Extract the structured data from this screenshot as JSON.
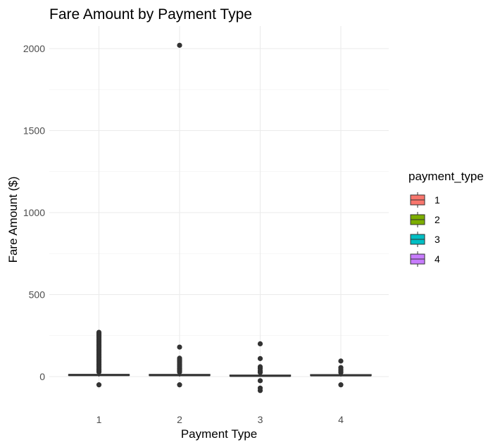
{
  "chart_data": {
    "type": "box",
    "title": "Fare Amount by Payment Type",
    "xlabel": "Payment Type",
    "ylabel": "Fare Amount ($)",
    "categories": [
      "1",
      "2",
      "3",
      "4"
    ],
    "ylim": [
      -100,
      2100
    ],
    "yticks": [
      0,
      500,
      1000,
      1500,
      2000
    ],
    "yticks_minor": [
      250,
      750,
      1250,
      1750
    ],
    "grid": true,
    "legend": {
      "title": "payment_type",
      "position": "right",
      "entries": [
        "1",
        "2",
        "3",
        "4"
      ]
    },
    "colors": {
      "1": "#F8766D",
      "2": "#7CAE00",
      "3": "#00BFC4",
      "4": "#C77CFF"
    },
    "boxes": [
      {
        "category": "1",
        "q1": 7,
        "median": 9.5,
        "q3": 13,
        "whisker_low": 0,
        "whisker_high": 22,
        "outliers": [
          -50,
          28,
          34,
          40,
          46,
          52,
          58,
          64,
          70,
          76,
          82,
          88,
          94,
          100,
          106,
          112,
          118,
          124,
          130,
          136,
          142,
          148,
          154,
          160,
          166,
          172,
          178,
          184,
          190,
          196,
          202,
          208,
          214,
          220,
          226,
          232,
          238,
          244,
          250,
          255,
          260,
          265,
          270
        ]
      },
      {
        "category": "2",
        "q1": 6.5,
        "median": 9,
        "q3": 13,
        "whisker_low": 0,
        "whisker_high": 22,
        "outliers": [
          -50,
          28,
          35,
          42,
          49,
          56,
          63,
          70,
          77,
          84,
          91,
          98,
          105,
          112,
          180,
          2020
        ]
      },
      {
        "category": "3",
        "q1": 3,
        "median": 5,
        "q3": 9,
        "whisker_low": 0,
        "whisker_high": 18,
        "outliers": [
          -85,
          -70,
          -25,
          25,
          35,
          50,
          60,
          110,
          200
        ]
      },
      {
        "category": "4",
        "q1": 6,
        "median": 8,
        "q3": 12,
        "whisker_low": 0,
        "whisker_high": 20,
        "outliers": [
          -50,
          25,
          35,
          45,
          55,
          95
        ]
      }
    ]
  }
}
